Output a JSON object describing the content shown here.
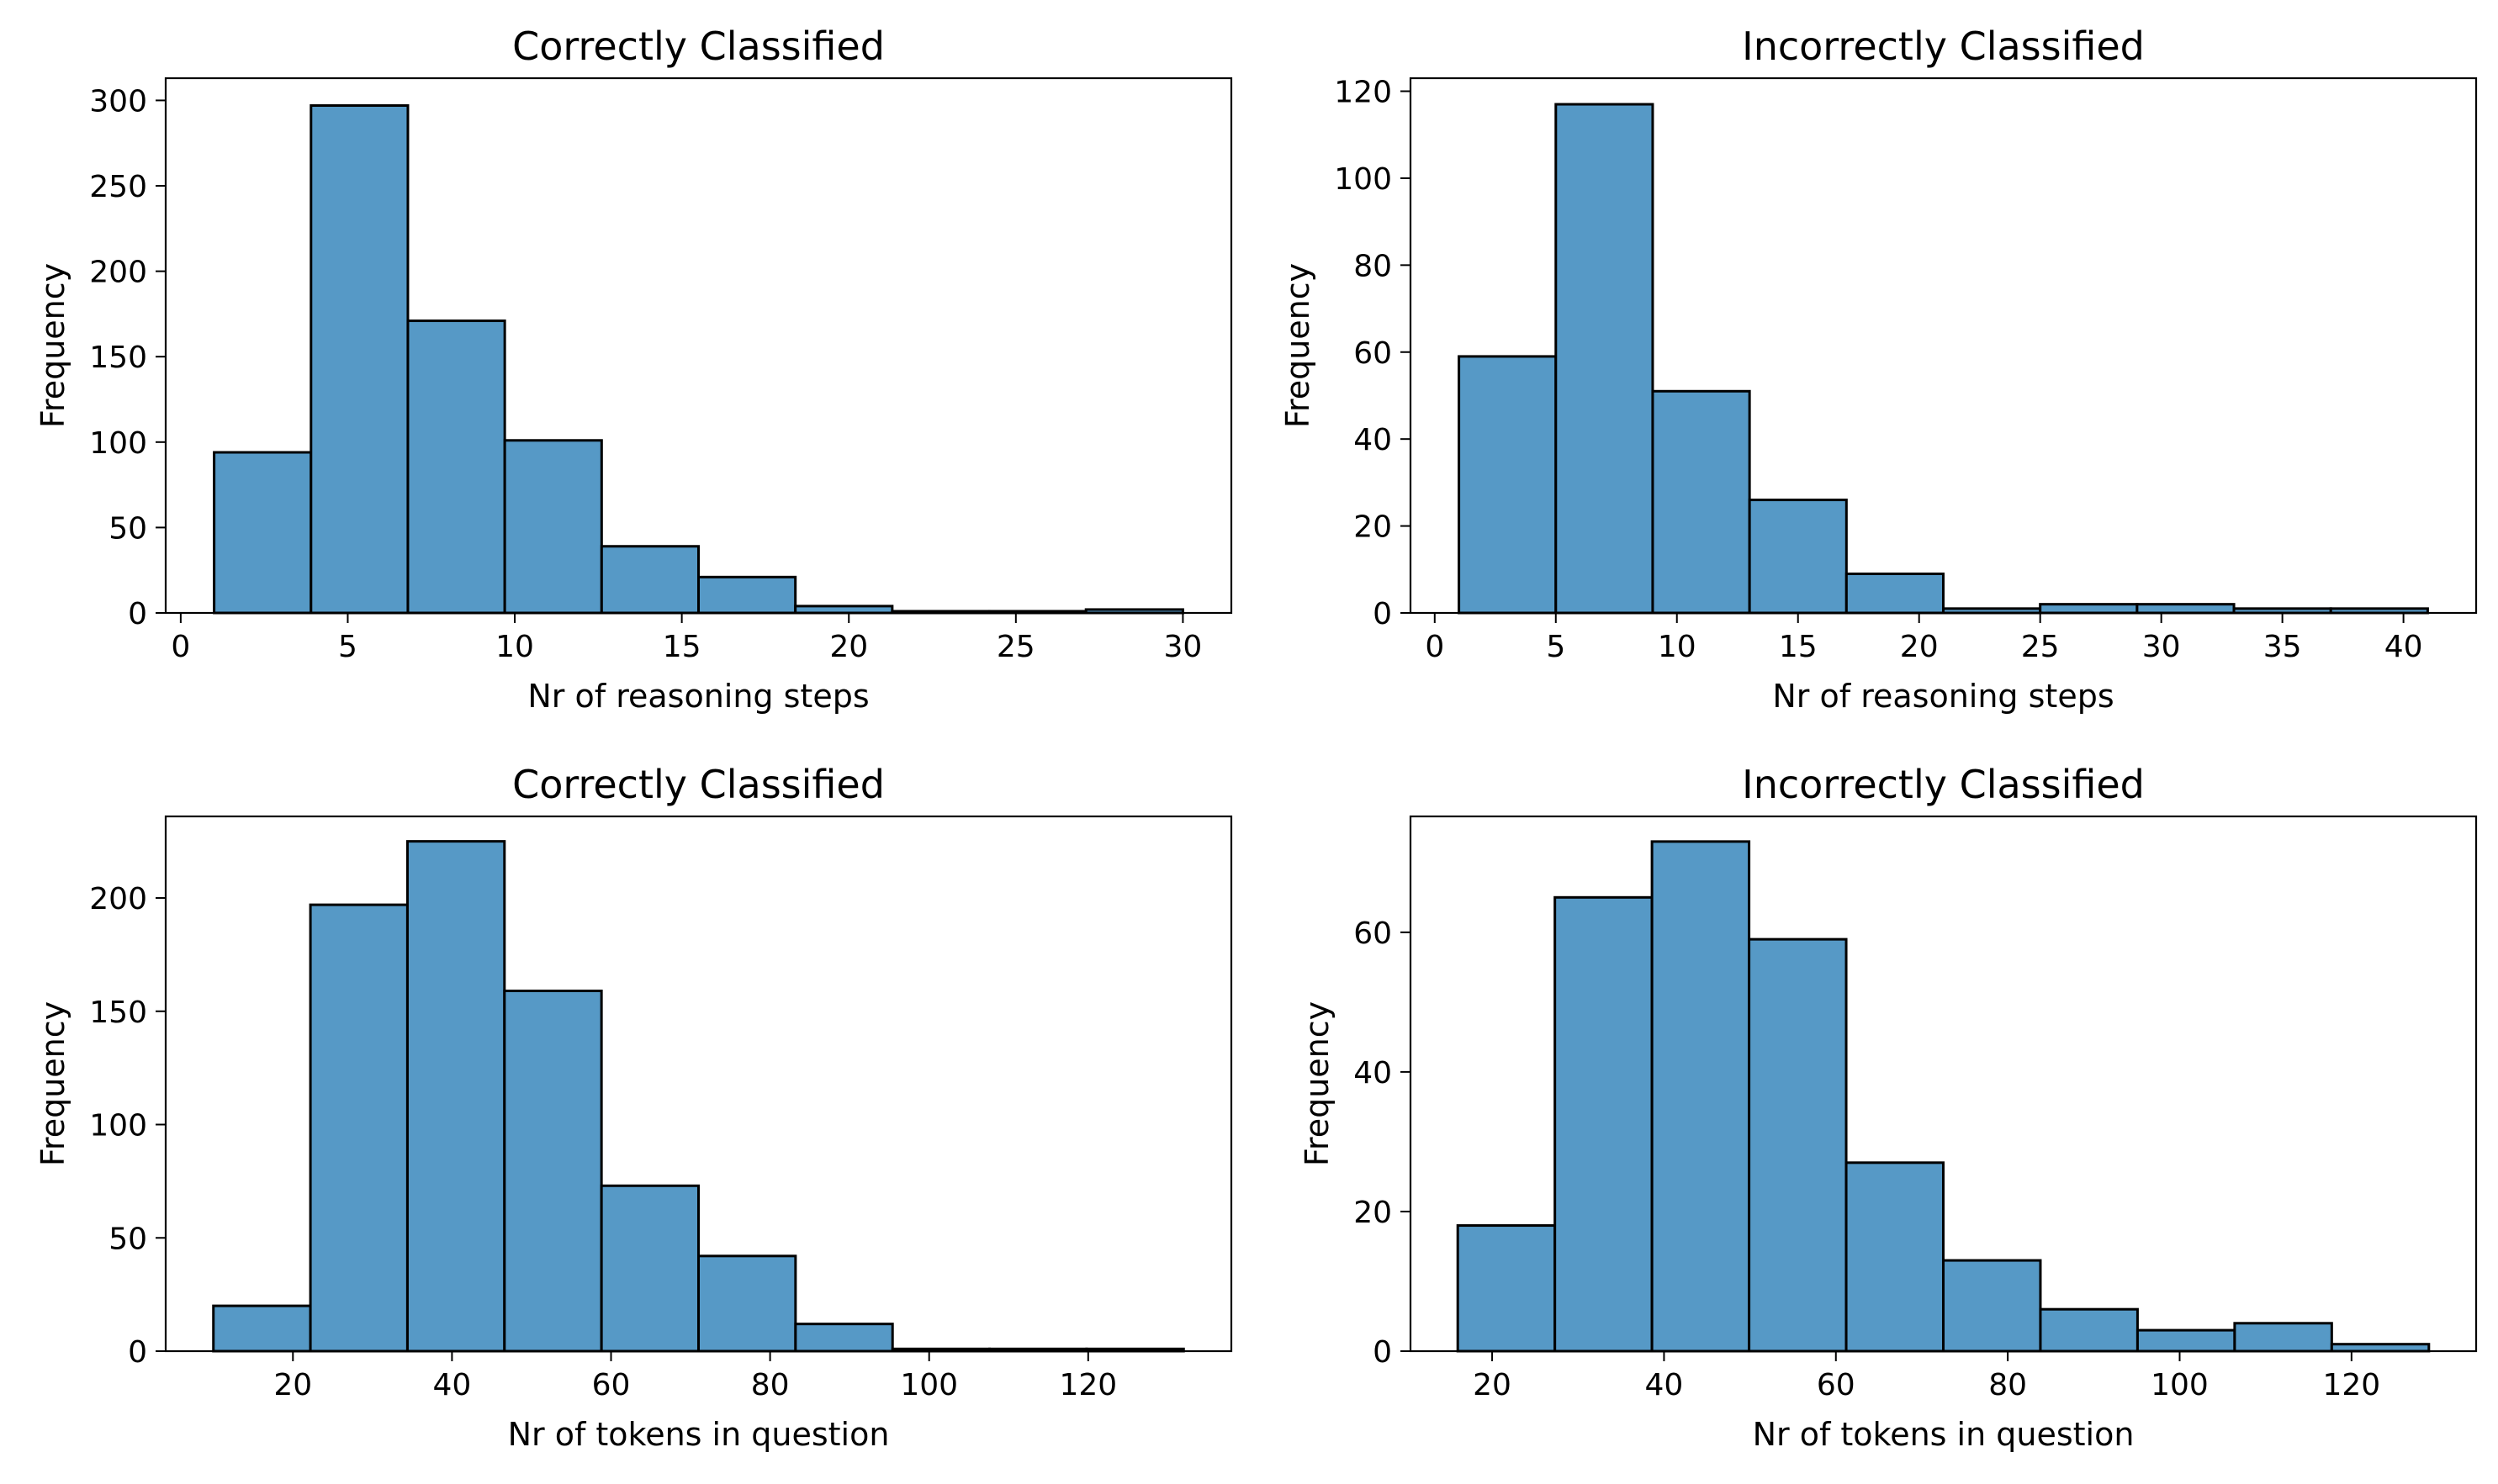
{
  "figure": {
    "bar_color": "#5699c6",
    "edge_color": "#000000"
  },
  "chart_data": [
    {
      "type": "bar",
      "title": "Correctly Classified",
      "xlabel": "Nr of reasoning steps",
      "ylabel": "Frequency",
      "xlim": [
        -0.45,
        31.45
      ],
      "ylim": [
        0,
        313
      ],
      "xticks": [
        0,
        5,
        10,
        15,
        20,
        25,
        30
      ],
      "yticks": [
        0,
        50,
        100,
        150,
        200,
        250,
        300
      ],
      "bin_edges": [
        1,
        3.9,
        6.8,
        9.7,
        12.6,
        15.5,
        18.4,
        21.3,
        24.2,
        27.1,
        30
      ],
      "values": [
        94,
        297,
        171,
        101,
        39,
        21,
        4,
        1,
        1,
        2
      ]
    },
    {
      "type": "bar",
      "title": "Incorrectly Classified",
      "xlabel": "Nr of reasoning steps",
      "ylabel": "Frequency",
      "xlim": [
        -1,
        43
      ],
      "ylim": [
        0,
        123
      ],
      "xticks": [
        0,
        5,
        10,
        15,
        20,
        25,
        30,
        35,
        40
      ],
      "yticks": [
        0,
        20,
        40,
        60,
        80,
        100,
        120
      ],
      "bin_edges": [
        1,
        5,
        9,
        13,
        17,
        21,
        25,
        29,
        33,
        37,
        41
      ],
      "values": [
        59,
        117,
        51,
        26,
        9,
        1,
        2,
        2,
        1,
        1
      ]
    },
    {
      "type": "bar",
      "title": "Correctly Classified",
      "xlabel": "Nr of tokens in question",
      "ylabel": "Frequency",
      "xlim": [
        4,
        138
      ],
      "ylim": [
        0,
        236
      ],
      "xticks": [
        20,
        40,
        60,
        80,
        100,
        120
      ],
      "yticks": [
        0,
        50,
        100,
        150,
        200
      ],
      "bin_edges": [
        10,
        22.2,
        34.4,
        46.6,
        58.8,
        71,
        83.2,
        95.4,
        107.6,
        119.8,
        132
      ],
      "values": [
        20,
        197,
        225,
        159,
        73,
        42,
        12,
        1,
        1,
        1
      ]
    },
    {
      "type": "bar",
      "title": "Incorrectly Classified",
      "xlabel": "Nr of tokens in question",
      "ylabel": "Frequency",
      "xlim": [
        10.5,
        134.5
      ],
      "ylim": [
        0,
        76.6
      ],
      "xticks": [
        20,
        40,
        60,
        80,
        100,
        120
      ],
      "yticks": [
        0,
        20,
        40,
        60
      ],
      "bin_edges": [
        16,
        27.3,
        38.6,
        49.9,
        61.2,
        72.5,
        83.8,
        95.1,
        106.4,
        117.7,
        129
      ],
      "values": [
        18,
        65,
        73,
        59,
        27,
        13,
        6,
        3,
        4,
        1
      ]
    }
  ]
}
